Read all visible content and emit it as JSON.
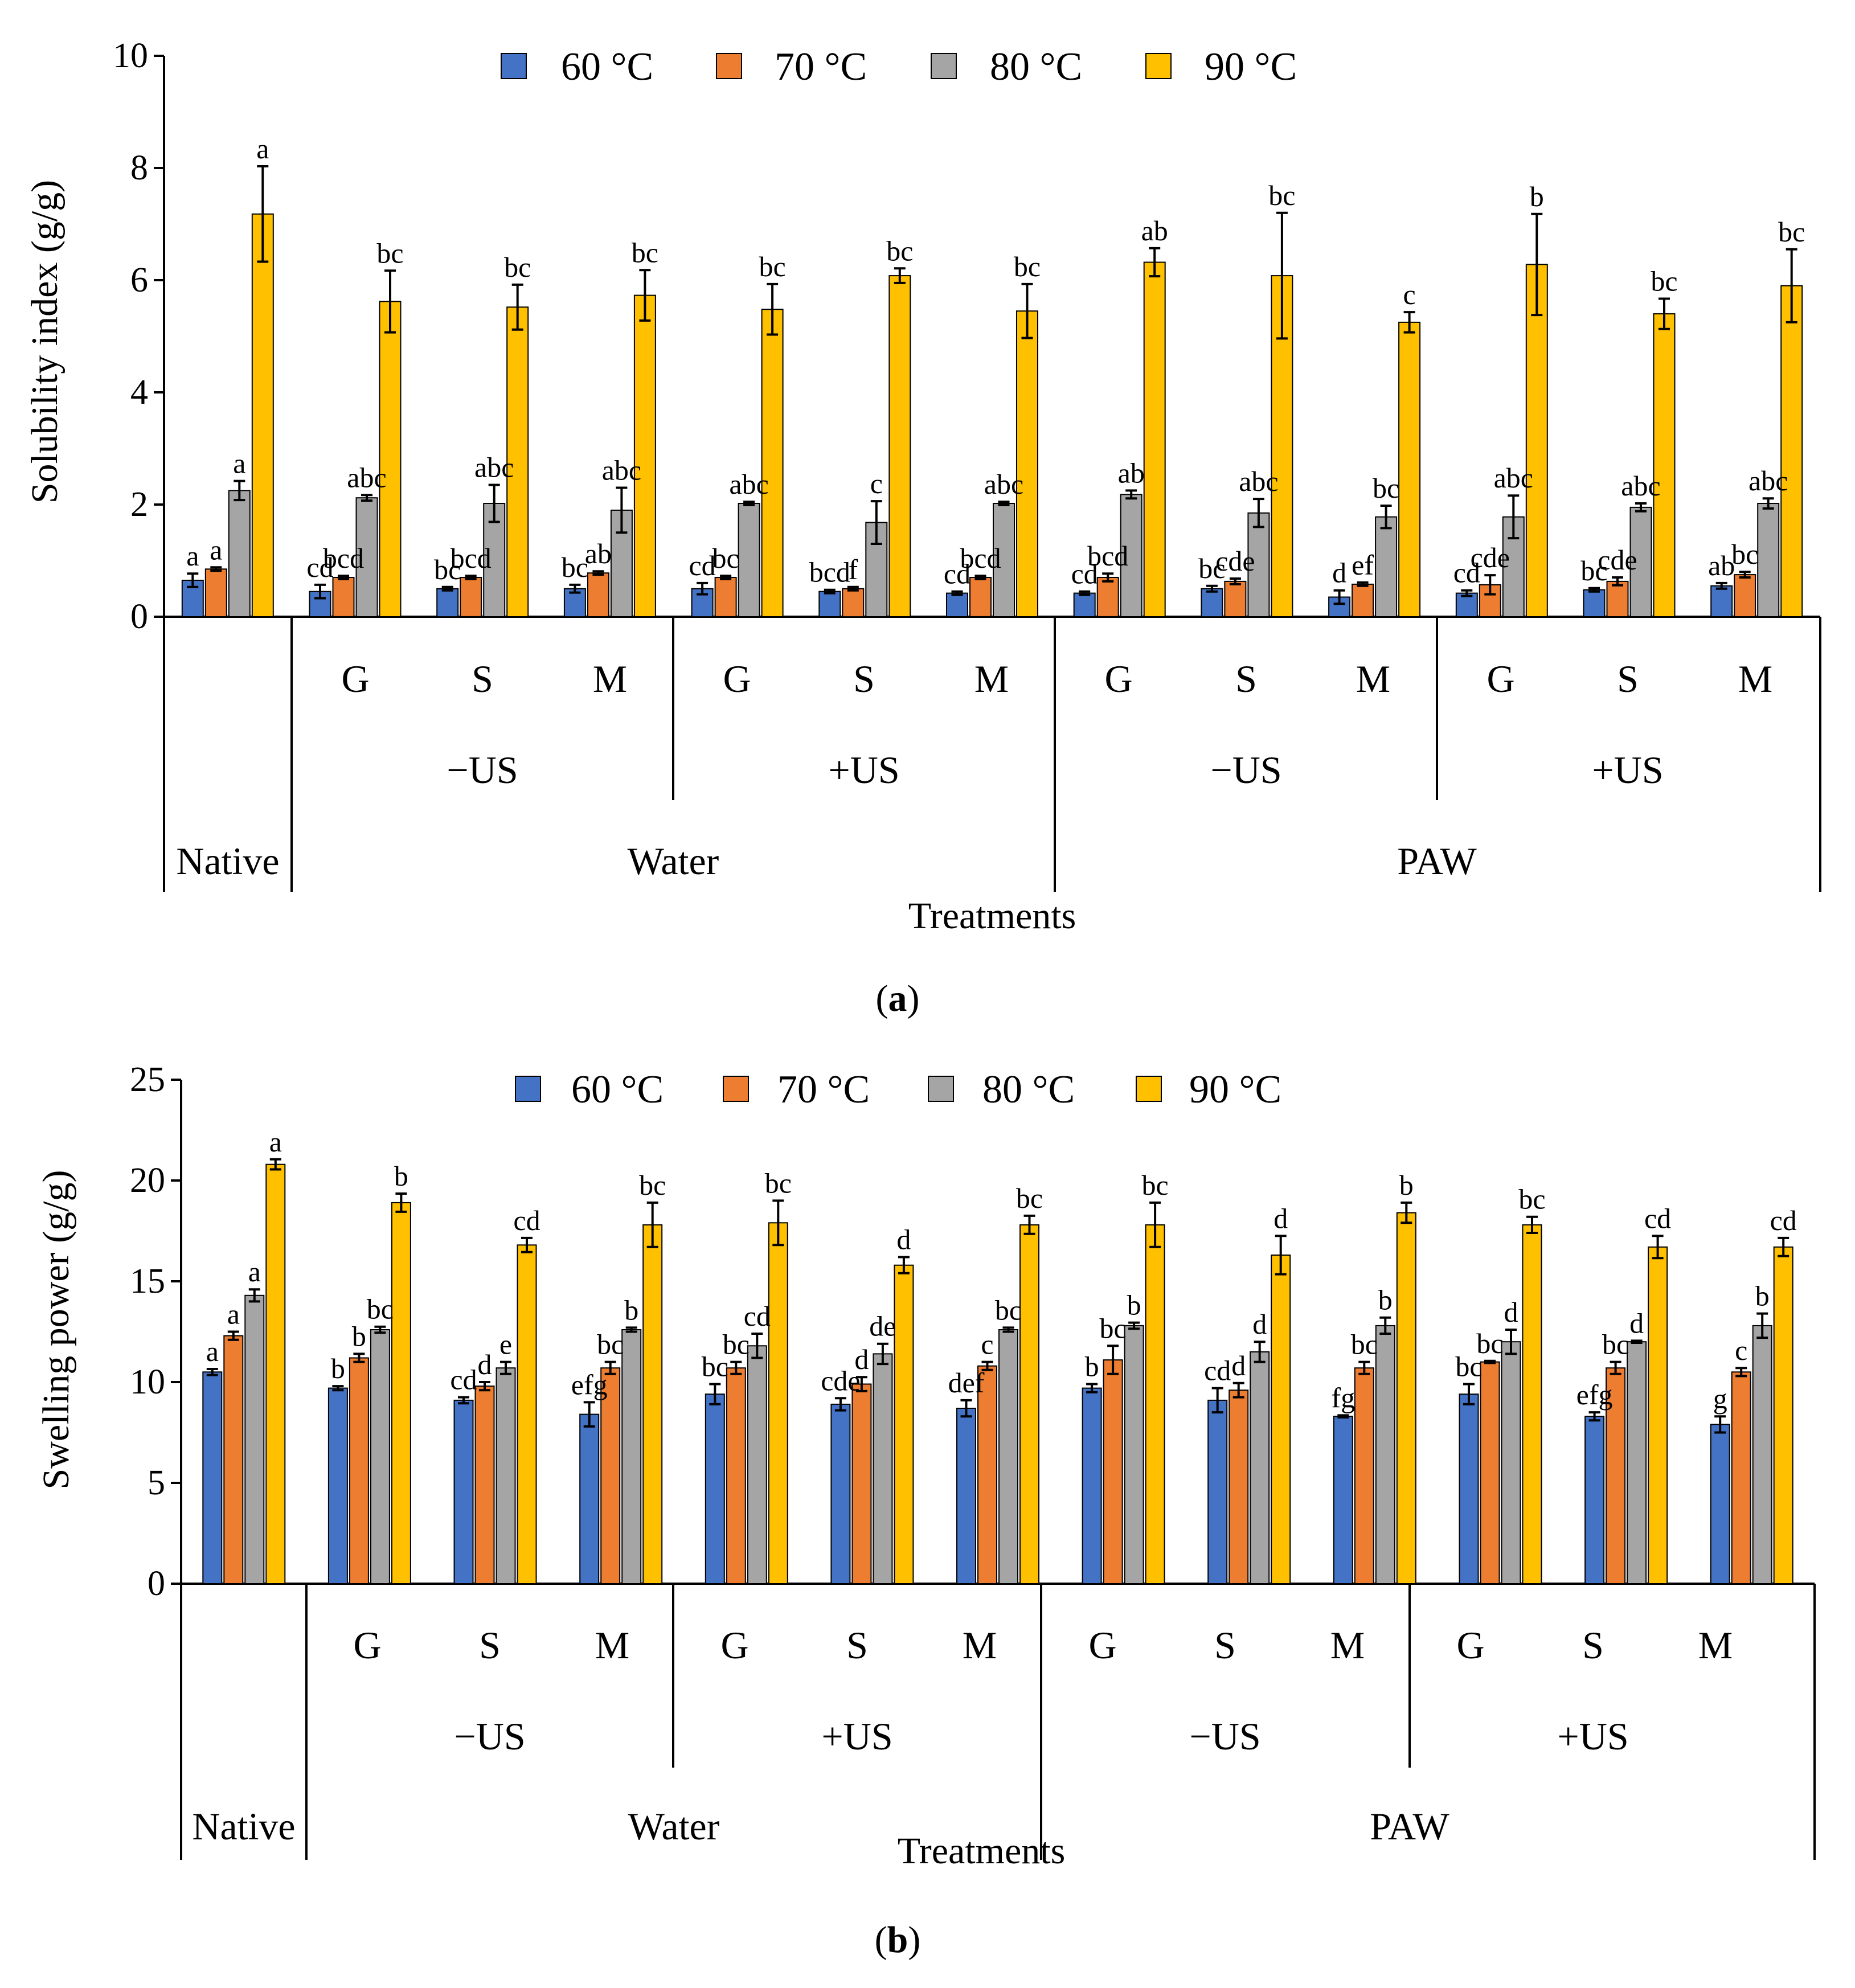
{
  "colors": {
    "60": "#4472C4",
    "70": "#ED7D31",
    "80": "#A5A5A5",
    "90": "#FFC000",
    "axis": "#000000"
  },
  "charts": [
    {
      "id": "a",
      "caption_open": "(",
      "caption_label": "a",
      "caption_close": ")",
      "ylabel": "Solubility index (g/g)",
      "xlabel": "Treatments",
      "y_ticks": [
        "0",
        "2",
        "4",
        "6",
        "8",
        "10"
      ],
      "legend": [
        "60 °C",
        "70 °C",
        "80 °C",
        "90 °C"
      ],
      "group_labels": [
        "G",
        "S",
        "M",
        "G",
        "S",
        "M",
        "G",
        "S",
        "M",
        "G",
        "S",
        "M"
      ],
      "us_labels": [
        "−US",
        "+US",
        "−US",
        "+US"
      ],
      "water_labels": [
        "Native",
        "Water",
        "PAW"
      ]
    },
    {
      "id": "b",
      "caption_open": "(",
      "caption_label": "b",
      "caption_close": ")",
      "ylabel": "Swelling power (g/g)",
      "xlabel": "Treatments",
      "y_ticks": [
        "0",
        "5",
        "10",
        "15",
        "20",
        "25"
      ],
      "legend": [
        "60 °C",
        "70 °C",
        "80 °C",
        "90 °C"
      ],
      "group_labels": [
        "G",
        "S",
        "M",
        "G",
        "S",
        "M",
        "G",
        "S",
        "M",
        "G",
        "S",
        "M"
      ],
      "us_labels": [
        "−US",
        "+US",
        "−US",
        "+US"
      ],
      "water_labels": [
        "Native",
        "Water",
        "PAW"
      ]
    }
  ],
  "chart_data": [
    {
      "type": "bar",
      "title": "(a)",
      "ylabel": "Solubility index (g/g)",
      "xlabel": "Treatments",
      "ylim": [
        0,
        10
      ],
      "categories": [
        "Native",
        "Water −US G",
        "Water −US S",
        "Water −US M",
        "Water +US G",
        "Water +US S",
        "Water +US M",
        "PAW −US G",
        "PAW −US S",
        "PAW −US M",
        "PAW +US G",
        "PAW +US S",
        "PAW +US M"
      ],
      "series": [
        {
          "name": "60 °C",
          "values": [
            0.65,
            0.45,
            0.5,
            0.5,
            0.5,
            0.45,
            0.42,
            0.42,
            0.5,
            0.35,
            0.42,
            0.48,
            0.55
          ],
          "errors": [
            0.12,
            0.12,
            0.03,
            0.07,
            0.1,
            0.03,
            0.03,
            0.03,
            0.05,
            0.12,
            0.05,
            0.03,
            0.05
          ],
          "letters": [
            "a",
            "cd",
            "bc",
            "bc",
            "cd",
            "bcd",
            "cd",
            "cd",
            "bc",
            "d",
            "cd",
            "bc",
            "ab"
          ]
        },
        {
          "name": "70 °C",
          "values": [
            0.85,
            0.7,
            0.7,
            0.78,
            0.7,
            0.5,
            0.7,
            0.7,
            0.63,
            0.58,
            0.57,
            0.63,
            0.75
          ],
          "errors": [
            0.03,
            0.03,
            0.03,
            0.03,
            0.03,
            0.03,
            0.03,
            0.07,
            0.05,
            0.03,
            0.17,
            0.07,
            0.05
          ],
          "letters": [
            "a",
            "bcd",
            "bcd",
            "ab",
            "bc",
            "f",
            "bcd",
            "bcd",
            "cde",
            "ef",
            "cde",
            "cde",
            "bc"
          ]
        },
        {
          "name": "80 °C",
          "values": [
            2.25,
            2.12,
            2.02,
            1.9,
            2.02,
            1.68,
            2.02,
            2.18,
            1.85,
            1.78,
            1.78,
            1.95,
            2.02
          ],
          "errors": [
            0.17,
            0.05,
            0.33,
            0.4,
            0.03,
            0.38,
            0.03,
            0.07,
            0.25,
            0.2,
            0.38,
            0.07,
            0.09
          ],
          "letters": [
            "a",
            "abc",
            "abc",
            "abc",
            "abc",
            "c",
            "abc",
            "ab",
            "abc",
            "bc",
            "abc",
            "abc",
            "abc"
          ]
        },
        {
          "name": "90 °C",
          "values": [
            7.18,
            5.62,
            5.52,
            5.73,
            5.48,
            6.08,
            5.45,
            6.32,
            6.08,
            5.25,
            6.28,
            5.4,
            5.9
          ],
          "errors": [
            0.85,
            0.55,
            0.4,
            0.45,
            0.45,
            0.13,
            0.48,
            0.25,
            1.12,
            0.18,
            0.9,
            0.27,
            0.65
          ],
          "letters": [
            "a",
            "bc",
            "bc",
            "bc",
            "bc",
            "bc",
            "bc",
            "ab",
            "bc",
            "c",
            "b",
            "bc",
            "bc"
          ]
        }
      ],
      "legend_position": "top"
    },
    {
      "type": "bar",
      "title": "(b)",
      "ylabel": "Swelling power (g/g)",
      "xlabel": "Treatments",
      "ylim": [
        0,
        25
      ],
      "categories": [
        "Native",
        "Water −US G",
        "Water −US S",
        "Water −US M",
        "Water +US G",
        "Water +US S",
        "Water +US M",
        "PAW −US G",
        "PAW −US S",
        "PAW −US M",
        "PAW +US G",
        "PAW +US S",
        "PAW +US M"
      ],
      "series": [
        {
          "name": "60 °C",
          "values": [
            10.5,
            9.7,
            9.1,
            8.4,
            9.4,
            8.9,
            8.7,
            9.7,
            9.1,
            8.3,
            9.4,
            8.3,
            7.9
          ],
          "errors": [
            0.15,
            0.1,
            0.15,
            0.6,
            0.5,
            0.3,
            0.4,
            0.2,
            0.6,
            0.05,
            0.5,
            0.2,
            0.4
          ],
          "letters": [
            "a",
            "b",
            "cd",
            "efg",
            "bc",
            "cde",
            "def",
            "b",
            "cd",
            "fg",
            "bc",
            "efg",
            "g"
          ]
        },
        {
          "name": "70 °C",
          "values": [
            12.3,
            11.2,
            9.8,
            10.7,
            10.7,
            9.9,
            10.8,
            11.1,
            9.6,
            10.7,
            11.0,
            10.7,
            10.5
          ],
          "errors": [
            0.2,
            0.2,
            0.2,
            0.3,
            0.3,
            0.35,
            0.2,
            0.7,
            0.35,
            0.3,
            0.05,
            0.3,
            0.2
          ],
          "letters": [
            "a",
            "b",
            "d",
            "bc",
            "bc",
            "d",
            "c",
            "bc",
            "d",
            "bc",
            "bc",
            "bc",
            "c"
          ]
        },
        {
          "name": "80 °C",
          "values": [
            14.3,
            12.6,
            10.7,
            12.6,
            11.8,
            11.4,
            12.6,
            12.8,
            11.5,
            12.8,
            12.0,
            12.0,
            12.8
          ],
          "errors": [
            0.3,
            0.15,
            0.3,
            0.1,
            0.6,
            0.5,
            0.1,
            0.15,
            0.5,
            0.4,
            0.6,
            0.05,
            0.6
          ],
          "letters": [
            "a",
            "bc",
            "e",
            "b",
            "cd",
            "de",
            "bc",
            "b",
            "d",
            "b",
            "d",
            "d",
            "b"
          ]
        },
        {
          "name": "90 °C",
          "values": [
            20.8,
            18.9,
            16.8,
            17.8,
            17.9,
            15.8,
            17.8,
            17.8,
            16.3,
            18.4,
            17.8,
            16.7,
            16.7
          ],
          "errors": [
            0.25,
            0.45,
            0.35,
            1.1,
            1.1,
            0.4,
            0.45,
            1.1,
            0.95,
            0.5,
            0.4,
            0.55,
            0.45
          ],
          "letters": [
            "a",
            "b",
            "cd",
            "bc",
            "bc",
            "d",
            "bc",
            "bc",
            "d",
            "b",
            "bc",
            "cd",
            "cd"
          ]
        }
      ],
      "legend_position": "top"
    }
  ]
}
